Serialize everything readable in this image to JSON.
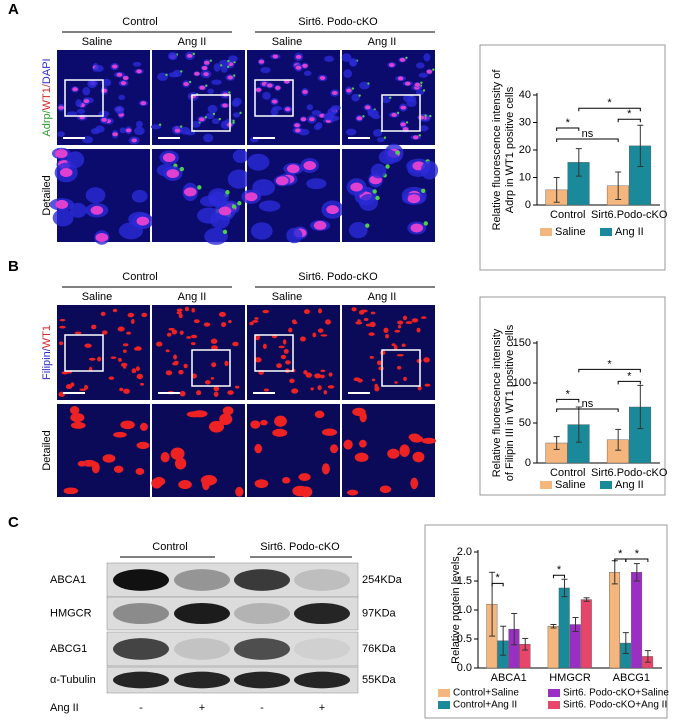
{
  "panel_a": {
    "label": "A",
    "group_headers": [
      "Control",
      "Sirt6. Podo-cKO"
    ],
    "conditions": [
      "Saline",
      "Ang II",
      "Saline",
      "Ang II"
    ],
    "stain_label": [
      "Adrp/",
      "WT1/",
      "DAPI"
    ],
    "row_label": "Detailed"
  },
  "panel_b": {
    "label": "B",
    "group_headers": [
      "Control",
      "Sirt6. Podo-cKO"
    ],
    "conditions": [
      "Saline",
      "Ang II",
      "Saline",
      "Ang II"
    ],
    "stain_label": [
      "Filipin/",
      "WT1"
    ],
    "row_label": "Detailed"
  },
  "panel_c": {
    "label": "C",
    "group_headers": [
      "Control",
      "Sirt6. Podo-cKO"
    ],
    "proteins": [
      "ABCA1",
      "HMGCR",
      "ABCG1",
      "α-Tubulin"
    ],
    "sizes": [
      "254KDa",
      "97KDa",
      "76KDa",
      "55KDa"
    ],
    "treatment_label": "Ang II",
    "treatment": [
      "-",
      "+",
      "-",
      "+"
    ]
  },
  "chart_data": [
    {
      "type": "bar",
      "y_label": [
        "Relative fluorescence intensity of",
        "Adrp  in WT1 positive cells"
      ],
      "categories": [
        "Control",
        "Sirt6.Podo-cKO"
      ],
      "series": [
        {
          "name": "Saline",
          "color": "#f4b67c",
          "values": [
            5.5,
            7
          ],
          "errors": [
            4.5,
            5
          ]
        },
        {
          "name": "Ang II",
          "color": "#1a8a9a",
          "values": [
            15.5,
            21.5
          ],
          "errors": [
            5,
            7.5
          ]
        }
      ],
      "ylim": [
        0,
        40
      ],
      "yticks": [
        0,
        10,
        20,
        30,
        40
      ],
      "annotations": [
        "*",
        "ns",
        "*",
        "*"
      ]
    },
    {
      "type": "bar",
      "y_label": [
        "Relative fluorescence intensity",
        "of Filipin III in WT1 positive cells"
      ],
      "categories": [
        "Control",
        "Sirt6.Podo-cKO"
      ],
      "series": [
        {
          "name": "Saline",
          "color": "#f4b67c",
          "values": [
            25,
            29
          ],
          "errors": [
            8,
            13
          ]
        },
        {
          "name": "Ang II",
          "color": "#1a8a9a",
          "values": [
            48,
            70
          ],
          "errors": [
            22,
            27
          ]
        }
      ],
      "ylim": [
        0,
        150
      ],
      "yticks": [
        0,
        50,
        100,
        150
      ],
      "annotations": [
        "*",
        "ns",
        "*",
        "*"
      ]
    },
    {
      "type": "bar",
      "y_label": [
        "Relative protein levels"
      ],
      "categories": [
        "ABCA1",
        "HMGCR",
        "ABCG1"
      ],
      "series": [
        {
          "name": "Control+Saline",
          "color": "#f4b67c",
          "values": [
            1.1,
            0.72,
            1.65
          ],
          "errors": [
            0.55,
            0.03,
            0.2
          ]
        },
        {
          "name": "Control+Ang II",
          "color": "#1a8a9a",
          "values": [
            0.47,
            1.38,
            0.43
          ],
          "errors": [
            0.25,
            0.15,
            0.18
          ]
        },
        {
          "name": "Sirt6. Podo-cKO+Saline",
          "color": "#9b2fc4",
          "values": [
            0.67,
            0.75,
            1.65
          ],
          "errors": [
            0.27,
            0.12,
            0.15
          ]
        },
        {
          "name": "Sirt6. Podo-cKO+Ang II",
          "color": "#e8456a",
          "values": [
            0.41,
            1.18,
            0.2
          ],
          "errors": [
            0.1,
            0.03,
            0.1
          ]
        }
      ],
      "ylim": [
        0,
        2
      ],
      "yticks": [
        {
          "value": 0,
          "label": "0.0"
        },
        0.5,
        {
          "value": 1,
          "label": "1.0"
        },
        1.5,
        {
          "value": 2,
          "label": "2.0"
        }
      ],
      "annotations": [
        "*",
        "*",
        "*",
        "*"
      ]
    }
  ]
}
